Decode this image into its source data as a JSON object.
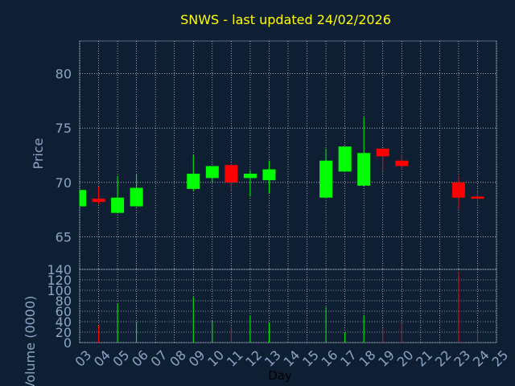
{
  "title": "SNWS - last updated 24/02/2026",
  "colors": {
    "background": "#0f1f33",
    "text": "#8aa5c5",
    "title": "#ffff00",
    "grid": "#ffffff",
    "up": "#00ff00",
    "down": "#ff0000"
  },
  "chart_data": [
    {
      "type": "candlestick",
      "ylabel": "Price",
      "ylim": [
        62,
        83
      ],
      "yticks": [
        65,
        70,
        75,
        80
      ],
      "grid": true,
      "candles": [
        {
          "day": "03",
          "open": 67.8,
          "high": 69.3,
          "low": 67.8,
          "close": 69.3
        },
        {
          "day": "04",
          "open": 68.5,
          "high": 69.6,
          "low": 68.0,
          "close": 68.2
        },
        {
          "day": "05",
          "open": 67.2,
          "high": 70.6,
          "low": 67.2,
          "close": 68.6
        },
        {
          "day": "06",
          "open": 67.8,
          "high": 70.7,
          "low": 67.8,
          "close": 69.5
        },
        {
          "day": "09",
          "open": 69.4,
          "high": 72.5,
          "low": 69.2,
          "close": 70.8
        },
        {
          "day": "10",
          "open": 70.4,
          "high": 71.5,
          "low": 70.0,
          "close": 71.5
        },
        {
          "day": "11",
          "open": 71.6,
          "high": 71.7,
          "low": 69.2,
          "close": 70.0
        },
        {
          "day": "12",
          "open": 70.4,
          "high": 71.1,
          "low": 68.7,
          "close": 70.8
        },
        {
          "day": "13",
          "open": 70.2,
          "high": 72.0,
          "low": 69.0,
          "close": 71.2
        },
        {
          "day": "16",
          "open": 68.6,
          "high": 73.1,
          "low": 68.6,
          "close": 72.0
        },
        {
          "day": "17",
          "open": 71.0,
          "high": 73.3,
          "low": 71.0,
          "close": 73.3
        },
        {
          "day": "18",
          "open": 69.7,
          "high": 76.0,
          "low": 69.7,
          "close": 72.7
        },
        {
          "day": "19",
          "open": 73.1,
          "high": 73.1,
          "low": 71.0,
          "close": 72.4
        },
        {
          "day": "20",
          "open": 72.0,
          "high": 72.6,
          "low": 71.2,
          "close": 71.5
        },
        {
          "day": "23",
          "open": 70.0,
          "high": 70.6,
          "low": 67.5,
          "close": 68.6
        },
        {
          "day": "24",
          "open": 68.7,
          "high": 69.2,
          "low": 68.0,
          "close": 68.5
        }
      ]
    },
    {
      "type": "bar",
      "ylabel": "Volume (0000)",
      "xlabel": "Day",
      "ylim": [
        0,
        140
      ],
      "yticks": [
        0,
        20,
        40,
        60,
        80,
        100,
        120,
        140
      ],
      "grid": true,
      "categories": [
        "03",
        "04",
        "05",
        "06",
        "07",
        "08",
        "09",
        "10",
        "11",
        "12",
        "13",
        "14",
        "15",
        "16",
        "17",
        "18",
        "19",
        "20",
        "21",
        "22",
        "23",
        "24",
        "25"
      ],
      "values": [
        {
          "day": "04",
          "value": 33,
          "direction": "down"
        },
        {
          "day": "05",
          "value": 75,
          "direction": "up"
        },
        {
          "day": "06",
          "value": 40,
          "direction": "up"
        },
        {
          "day": "09",
          "value": 87,
          "direction": "up"
        },
        {
          "day": "10",
          "value": 42,
          "direction": "up"
        },
        {
          "day": "11",
          "value": 30,
          "direction": "down"
        },
        {
          "day": "12",
          "value": 52,
          "direction": "up"
        },
        {
          "day": "13",
          "value": 38,
          "direction": "up"
        },
        {
          "day": "16",
          "value": 68,
          "direction": "up"
        },
        {
          "day": "17",
          "value": 20,
          "direction": "up"
        },
        {
          "day": "18",
          "value": 53,
          "direction": "up"
        },
        {
          "day": "19",
          "value": 27,
          "direction": "down"
        },
        {
          "day": "20",
          "value": 37,
          "direction": "down"
        },
        {
          "day": "23",
          "value": 135,
          "direction": "down"
        },
        {
          "day": "24",
          "value": 22,
          "direction": "down"
        }
      ]
    }
  ]
}
